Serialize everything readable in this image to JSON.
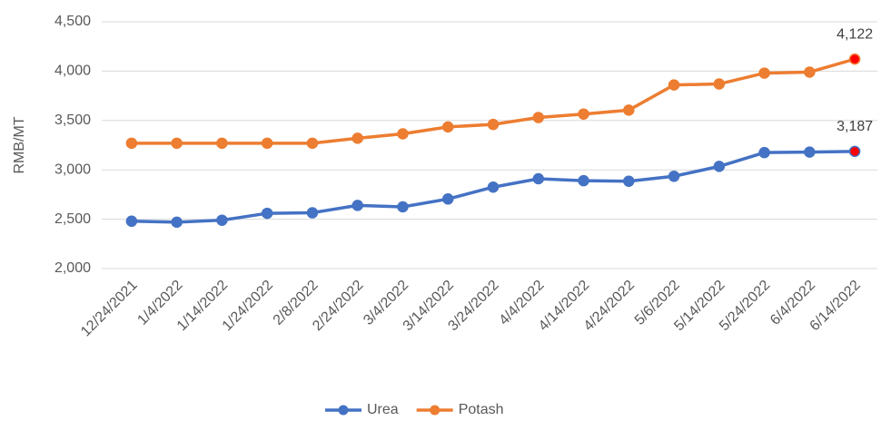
{
  "chart_data": {
    "type": "line",
    "y_label": "RMB/MT",
    "categories": [
      "12/24/2021",
      "1/4/2022",
      "1/14/2022",
      "1/24/2022",
      "2/8/2022",
      "2/24/2022",
      "3/4/2022",
      "3/14/2022",
      "3/24/2022",
      "4/4/2022",
      "4/14/2022",
      "4/24/2022",
      "5/6/2022",
      "5/14/2022",
      "5/24/2022",
      "6/4/2022",
      "6/14/2022"
    ],
    "series": [
      {
        "name": "Urea",
        "color": "#4472c4",
        "values": [
          2480,
          2470,
          2490,
          2560,
          2565,
          2640,
          2625,
          2705,
          2825,
          2910,
          2890,
          2885,
          2935,
          3035,
          3175,
          3180,
          3187
        ],
        "value_labels": [
          null,
          null,
          null,
          null,
          null,
          null,
          null,
          null,
          null,
          null,
          null,
          null,
          null,
          null,
          null,
          null,
          "3,187"
        ]
      },
      {
        "name": "Potash",
        "color": "#ed7d31",
        "values": [
          3270,
          3270,
          3270,
          3270,
          3270,
          3320,
          3365,
          3435,
          3460,
          3530,
          3565,
          3605,
          3860,
          3870,
          3980,
          3990,
          4122
        ],
        "value_labels": [
          null,
          null,
          null,
          null,
          null,
          null,
          null,
          null,
          null,
          null,
          null,
          null,
          null,
          null,
          null,
          null,
          "4,122"
        ]
      }
    ],
    "highlight_color": "#ff0000",
    "ylim": [
      2000,
      4500
    ],
    "yticks": [
      {
        "value": 2000,
        "label": "2,000"
      },
      {
        "value": 2500,
        "label": "2,500"
      },
      {
        "value": 3000,
        "label": "3,000"
      },
      {
        "value": 3500,
        "label": "3,500"
      },
      {
        "value": 4000,
        "label": "4,000"
      },
      {
        "value": 4500,
        "label": "4,500"
      }
    ],
    "grid": true,
    "legend": "bottom"
  }
}
